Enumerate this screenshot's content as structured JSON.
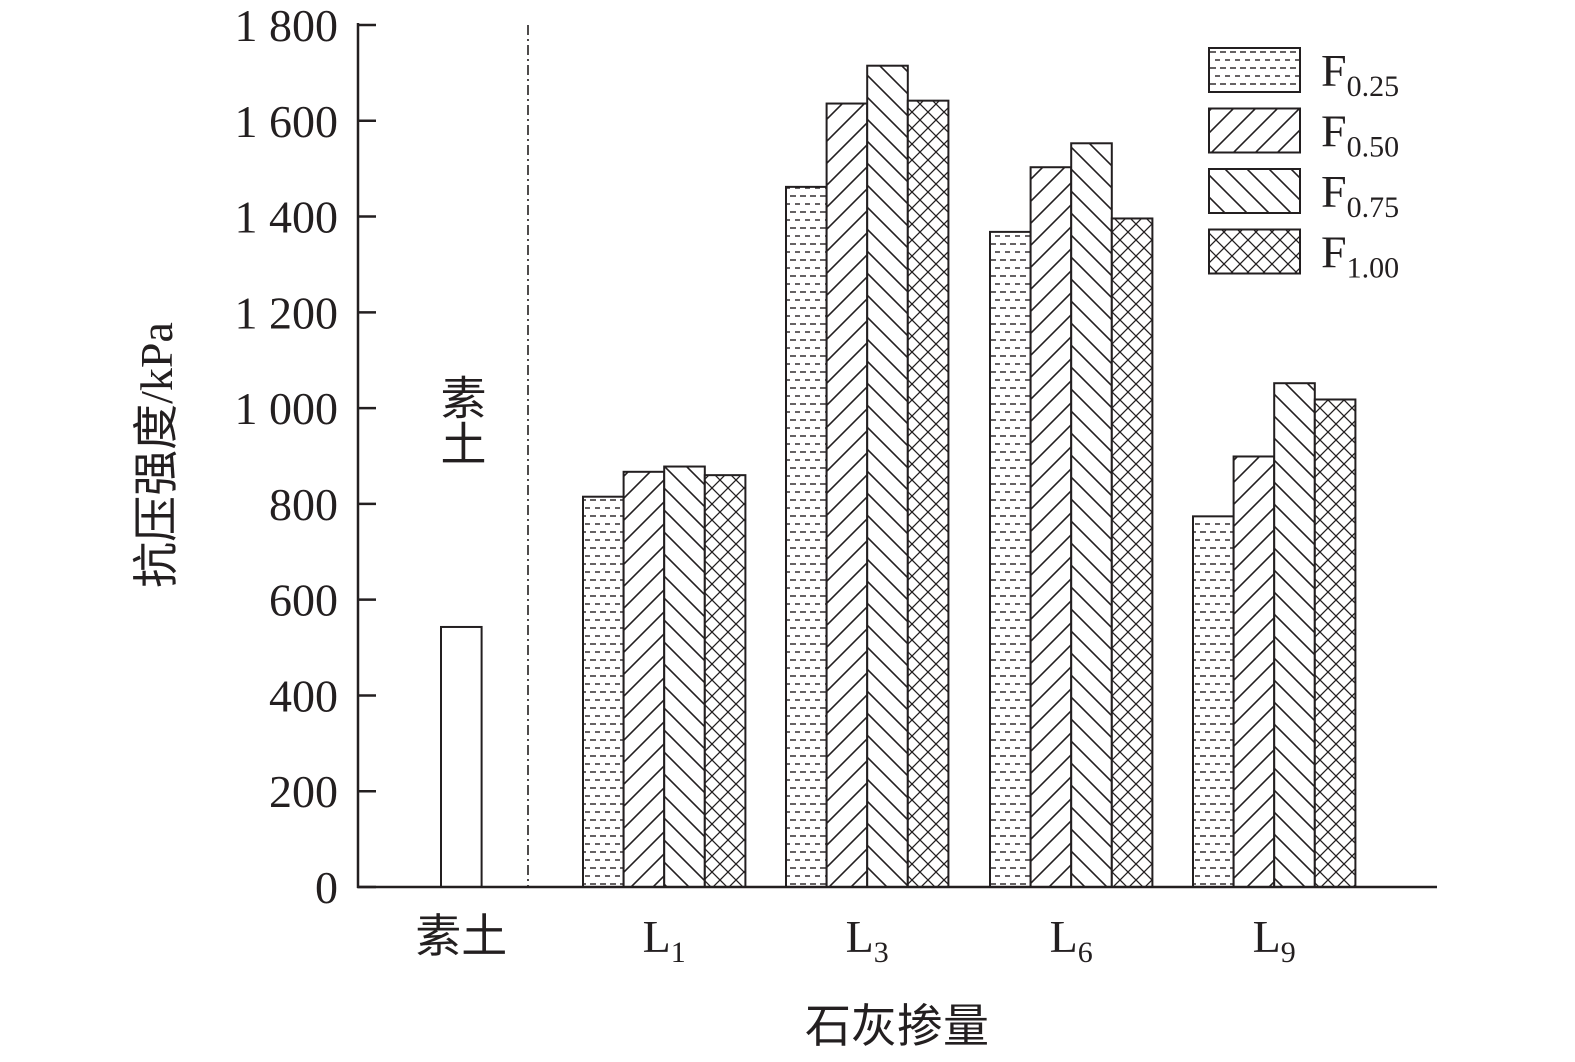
{
  "chart_data": {
    "type": "bar",
    "title": "",
    "xlabel": "石灰掺量",
    "ylabel": "抗压强度/kPa",
    "ylim": [
      0,
      1800
    ],
    "yticks": [
      0,
      200,
      400,
      600,
      800,
      1000,
      1200,
      1400,
      1600,
      1800
    ],
    "ytick_labels": [
      "0",
      "200",
      "400",
      "600",
      "800",
      "1 000",
      "1 200",
      "1 400",
      "1 600",
      "1 800"
    ],
    "grid": false,
    "legend_position": "top-right",
    "plain_soil": {
      "category": "素土",
      "annotation": "素土",
      "value": 543
    },
    "categories": [
      {
        "base": "L",
        "sub": "1"
      },
      {
        "base": "L",
        "sub": "3"
      },
      {
        "base": "L",
        "sub": "6"
      },
      {
        "base": "L",
        "sub": "9"
      }
    ],
    "series": [
      {
        "name_base": "F",
        "name_sub": "0.25",
        "pattern": "dots-dashes",
        "values": [
          815,
          1462,
          1368,
          774
        ]
      },
      {
        "name_base": "F",
        "name_sub": "0.50",
        "pattern": "forward-hatch",
        "values": [
          867,
          1636,
          1503,
          899
        ]
      },
      {
        "name_base": "F",
        "name_sub": "0.75",
        "pattern": "back-hatch",
        "values": [
          878,
          1715,
          1553,
          1052
        ]
      },
      {
        "name_base": "F",
        "name_sub": "1.00",
        "pattern": "cross-hatch",
        "values": [
          860,
          1642,
          1396,
          1018
        ]
      }
    ]
  }
}
